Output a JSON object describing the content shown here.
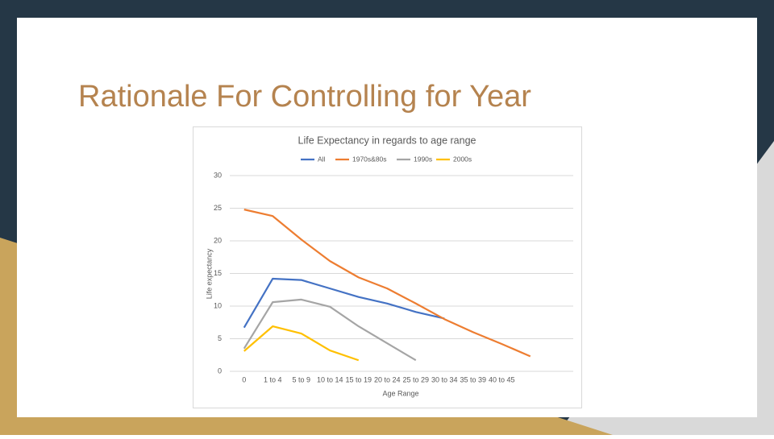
{
  "slide": {
    "title": "Rationale For Controlling for Year"
  },
  "chart_data": {
    "type": "line",
    "title": "Life Expectancy in regards to age range",
    "x_label": "Age Range",
    "y_label": "Life expectancy",
    "categories": [
      "0",
      "1 to 4",
      "5 to 9",
      "10 to 14",
      "15 to 19",
      "20 to 24",
      "25 to 29",
      "30 to 34",
      "35 to 39",
      "40 to 45",
      null,
      null
    ],
    "series": [
      {
        "name": "All",
        "color": "#4472c4",
        "values": [
          6.7,
          14.2,
          14.0,
          12.7,
          11.4,
          10.4,
          9.1,
          8.1,
          null,
          null,
          null,
          null
        ]
      },
      {
        "name": "1970s&80s",
        "color": "#ed7d31",
        "values": [
          24.8,
          23.8,
          20.2,
          16.9,
          14.4,
          12.7,
          10.4,
          8.0,
          6.0,
          4.2,
          2.3,
          null
        ]
      },
      {
        "name": "1990s",
        "color": "#a5a5a5",
        "values": [
          3.5,
          10.6,
          11.0,
          9.9,
          6.9,
          4.3,
          1.7,
          null,
          null,
          null,
          null,
          null
        ]
      },
      {
        "name": "2000s",
        "color": "#ffc000",
        "values": [
          3.1,
          6.9,
          5.8,
          3.2,
          1.7,
          null,
          null,
          null,
          null,
          null,
          null,
          null
        ]
      }
    ],
    "ylim": [
      0,
      30
    ],
    "yticks": [
      0,
      5,
      10,
      15,
      20,
      25,
      30
    ],
    "grid": true,
    "legend": "top"
  }
}
